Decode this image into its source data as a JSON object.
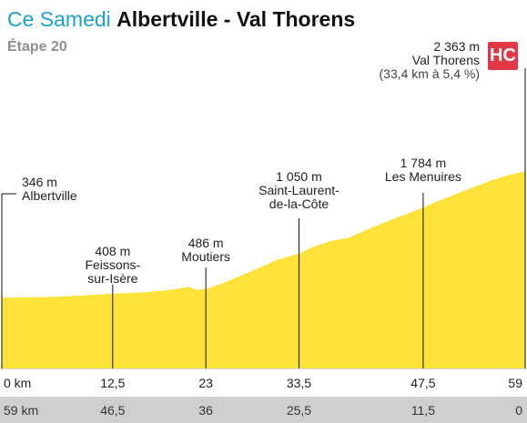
{
  "header": {
    "prefix": "Ce Samedi",
    "route": "Albertville - Val Thorens",
    "stage": "Étape 20",
    "badge": "HC"
  },
  "colors": {
    "accent": "#1aa1cf",
    "profile_fill": "#fde23a",
    "badge": "#e23744",
    "band": "#cfcfcf"
  },
  "chart_data": {
    "type": "area",
    "title": "Albertville - Val Thorens",
    "xlabel": "km",
    "ylabel": "m",
    "total_km": 59,
    "ylim": [
      0,
      2500
    ],
    "grid": false,
    "profile": {
      "x": [
        0,
        3,
        6,
        9,
        12.5,
        16,
        19,
        21,
        22,
        23,
        25,
        27,
        29,
        31,
        33.5,
        35,
        37,
        39,
        41,
        43,
        45,
        47.5,
        49,
        51,
        53,
        55,
        57,
        59
      ],
      "y": [
        346,
        350,
        360,
        380,
        408,
        430,
        470,
        520,
        470,
        486,
        580,
        700,
        820,
        950,
        1050,
        1150,
        1250,
        1300,
        1420,
        1540,
        1650,
        1784,
        1880,
        1990,
        2100,
        2210,
        2300,
        2363
      ]
    },
    "waypoints": [
      {
        "km": 0,
        "alt": "346 m",
        "name": "Albertville",
        "remaining": "59 km",
        "km_label": "0 km"
      },
      {
        "km": 12.5,
        "alt": "408 m",
        "name": "Feissons-\nsur-Isère",
        "remaining": "46,5",
        "km_label": "12,5"
      },
      {
        "km": 23,
        "alt": "486 m",
        "name": "Moutiers",
        "remaining": "36",
        "km_label": "23"
      },
      {
        "km": 33.5,
        "alt": "1 050 m",
        "name": "Saint-Laurent-\nde-la-Côte",
        "remaining": "25,5",
        "km_label": "33,5"
      },
      {
        "km": 47.5,
        "alt": "1 784 m",
        "name": "Les Menuires",
        "remaining": "11,5",
        "km_label": "47,5"
      },
      {
        "km": 59,
        "alt": "2 363 m",
        "name": "Val Thorens",
        "note": "(33,4 km à 5,4 %)",
        "remaining": "0",
        "km_label": "59"
      }
    ]
  }
}
